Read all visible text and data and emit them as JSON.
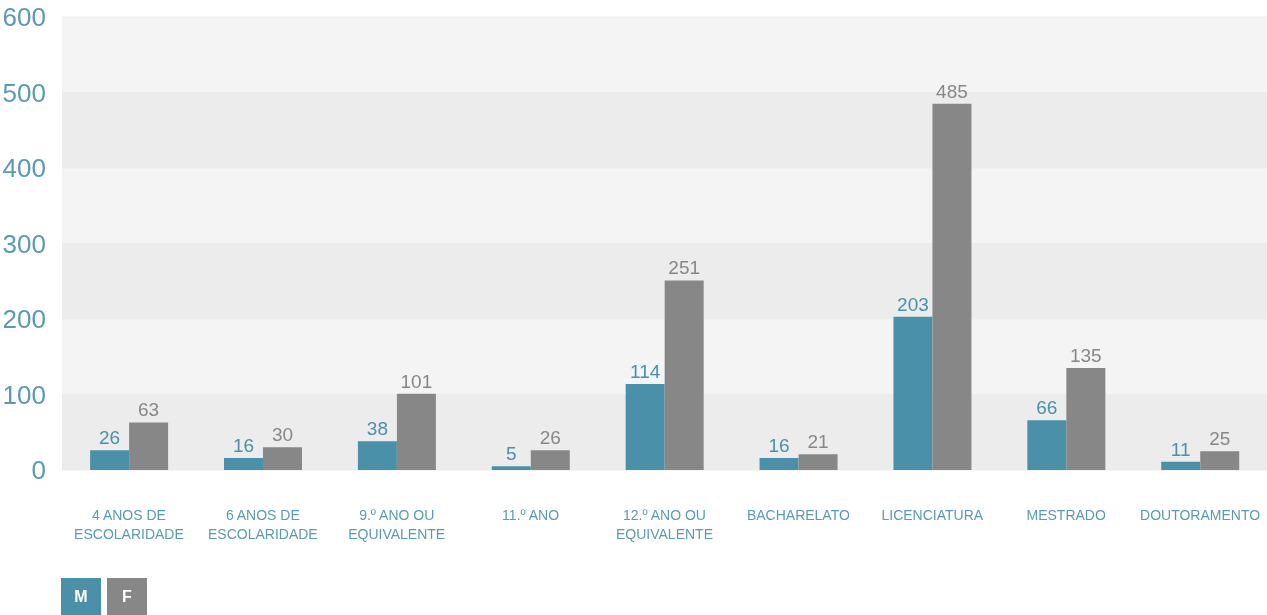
{
  "chart_data": {
    "type": "bar",
    "categories": [
      "4 ANOS DE ESCOLARIDADE",
      "6 ANOS DE ESCOLARIDADE",
      "9.º ANO OU EQUIVALENTE",
      "11.º ANO",
      "12.º ANO OU EQUIVALENTE",
      "BACHARELATO",
      "LICENCIATURA",
      "MESTRADO",
      "DOUTORAMENTO"
    ],
    "series": [
      {
        "name": "M",
        "color": "#4a90a8",
        "values": [
          26,
          16,
          38,
          5,
          114,
          16,
          203,
          66,
          11
        ]
      },
      {
        "name": "F",
        "color": "#878787",
        "values": [
          63,
          30,
          101,
          26,
          251,
          21,
          485,
          135,
          25
        ]
      }
    ],
    "ylim": [
      0,
      600
    ],
    "yticks": [
      0,
      100,
      200,
      300,
      400,
      500,
      600
    ],
    "grid": "y",
    "legend": "bottom left",
    "data_labels": true
  }
}
